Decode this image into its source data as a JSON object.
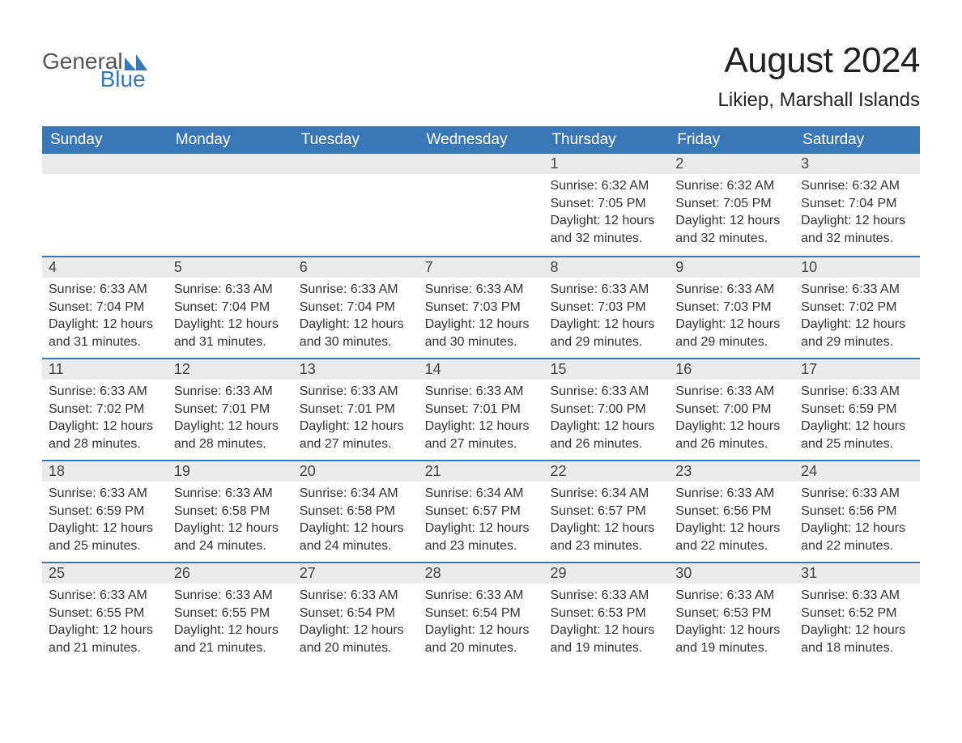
{
  "logo": {
    "general": "General",
    "blue": "Blue",
    "icon_color": "#3a77b7"
  },
  "header": {
    "month_title": "August 2024",
    "location": "Likiep, Marshall Islands"
  },
  "colors": {
    "header_bg": "#3a77b7",
    "header_text": "#ffffff",
    "daynum_bg": "#ebebeb",
    "week_border": "#3a77b7",
    "body_text": "#333333",
    "background": "#ffffff"
  },
  "day_names": [
    "Sunday",
    "Monday",
    "Tuesday",
    "Wednesday",
    "Thursday",
    "Friday",
    "Saturday"
  ],
  "weeks": [
    [
      null,
      null,
      null,
      null,
      {
        "day": "1",
        "sunrise": "Sunrise: 6:32 AM",
        "sunset": "Sunset: 7:05 PM",
        "daylight": "Daylight: 12 hours and 32 minutes."
      },
      {
        "day": "2",
        "sunrise": "Sunrise: 6:32 AM",
        "sunset": "Sunset: 7:05 PM",
        "daylight": "Daylight: 12 hours and 32 minutes."
      },
      {
        "day": "3",
        "sunrise": "Sunrise: 6:32 AM",
        "sunset": "Sunset: 7:04 PM",
        "daylight": "Daylight: 12 hours and 32 minutes."
      }
    ],
    [
      {
        "day": "4",
        "sunrise": "Sunrise: 6:33 AM",
        "sunset": "Sunset: 7:04 PM",
        "daylight": "Daylight: 12 hours and 31 minutes."
      },
      {
        "day": "5",
        "sunrise": "Sunrise: 6:33 AM",
        "sunset": "Sunset: 7:04 PM",
        "daylight": "Daylight: 12 hours and 31 minutes."
      },
      {
        "day": "6",
        "sunrise": "Sunrise: 6:33 AM",
        "sunset": "Sunset: 7:04 PM",
        "daylight": "Daylight: 12 hours and 30 minutes."
      },
      {
        "day": "7",
        "sunrise": "Sunrise: 6:33 AM",
        "sunset": "Sunset: 7:03 PM",
        "daylight": "Daylight: 12 hours and 30 minutes."
      },
      {
        "day": "8",
        "sunrise": "Sunrise: 6:33 AM",
        "sunset": "Sunset: 7:03 PM",
        "daylight": "Daylight: 12 hours and 29 minutes."
      },
      {
        "day": "9",
        "sunrise": "Sunrise: 6:33 AM",
        "sunset": "Sunset: 7:03 PM",
        "daylight": "Daylight: 12 hours and 29 minutes."
      },
      {
        "day": "10",
        "sunrise": "Sunrise: 6:33 AM",
        "sunset": "Sunset: 7:02 PM",
        "daylight": "Daylight: 12 hours and 29 minutes."
      }
    ],
    [
      {
        "day": "11",
        "sunrise": "Sunrise: 6:33 AM",
        "sunset": "Sunset: 7:02 PM",
        "daylight": "Daylight: 12 hours and 28 minutes."
      },
      {
        "day": "12",
        "sunrise": "Sunrise: 6:33 AM",
        "sunset": "Sunset: 7:01 PM",
        "daylight": "Daylight: 12 hours and 28 minutes."
      },
      {
        "day": "13",
        "sunrise": "Sunrise: 6:33 AM",
        "sunset": "Sunset: 7:01 PM",
        "daylight": "Daylight: 12 hours and 27 minutes."
      },
      {
        "day": "14",
        "sunrise": "Sunrise: 6:33 AM",
        "sunset": "Sunset: 7:01 PM",
        "daylight": "Daylight: 12 hours and 27 minutes."
      },
      {
        "day": "15",
        "sunrise": "Sunrise: 6:33 AM",
        "sunset": "Sunset: 7:00 PM",
        "daylight": "Daylight: 12 hours and 26 minutes."
      },
      {
        "day": "16",
        "sunrise": "Sunrise: 6:33 AM",
        "sunset": "Sunset: 7:00 PM",
        "daylight": "Daylight: 12 hours and 26 minutes."
      },
      {
        "day": "17",
        "sunrise": "Sunrise: 6:33 AM",
        "sunset": "Sunset: 6:59 PM",
        "daylight": "Daylight: 12 hours and 25 minutes."
      }
    ],
    [
      {
        "day": "18",
        "sunrise": "Sunrise: 6:33 AM",
        "sunset": "Sunset: 6:59 PM",
        "daylight": "Daylight: 12 hours and 25 minutes."
      },
      {
        "day": "19",
        "sunrise": "Sunrise: 6:33 AM",
        "sunset": "Sunset: 6:58 PM",
        "daylight": "Daylight: 12 hours and 24 minutes."
      },
      {
        "day": "20",
        "sunrise": "Sunrise: 6:34 AM",
        "sunset": "Sunset: 6:58 PM",
        "daylight": "Daylight: 12 hours and 24 minutes."
      },
      {
        "day": "21",
        "sunrise": "Sunrise: 6:34 AM",
        "sunset": "Sunset: 6:57 PM",
        "daylight": "Daylight: 12 hours and 23 minutes."
      },
      {
        "day": "22",
        "sunrise": "Sunrise: 6:34 AM",
        "sunset": "Sunset: 6:57 PM",
        "daylight": "Daylight: 12 hours and 23 minutes."
      },
      {
        "day": "23",
        "sunrise": "Sunrise: 6:33 AM",
        "sunset": "Sunset: 6:56 PM",
        "daylight": "Daylight: 12 hours and 22 minutes."
      },
      {
        "day": "24",
        "sunrise": "Sunrise: 6:33 AM",
        "sunset": "Sunset: 6:56 PM",
        "daylight": "Daylight: 12 hours and 22 minutes."
      }
    ],
    [
      {
        "day": "25",
        "sunrise": "Sunrise: 6:33 AM",
        "sunset": "Sunset: 6:55 PM",
        "daylight": "Daylight: 12 hours and 21 minutes."
      },
      {
        "day": "26",
        "sunrise": "Sunrise: 6:33 AM",
        "sunset": "Sunset: 6:55 PM",
        "daylight": "Daylight: 12 hours and 21 minutes."
      },
      {
        "day": "27",
        "sunrise": "Sunrise: 6:33 AM",
        "sunset": "Sunset: 6:54 PM",
        "daylight": "Daylight: 12 hours and 20 minutes."
      },
      {
        "day": "28",
        "sunrise": "Sunrise: 6:33 AM",
        "sunset": "Sunset: 6:54 PM",
        "daylight": "Daylight: 12 hours and 20 minutes."
      },
      {
        "day": "29",
        "sunrise": "Sunrise: 6:33 AM",
        "sunset": "Sunset: 6:53 PM",
        "daylight": "Daylight: 12 hours and 19 minutes."
      },
      {
        "day": "30",
        "sunrise": "Sunrise: 6:33 AM",
        "sunset": "Sunset: 6:53 PM",
        "daylight": "Daylight: 12 hours and 19 minutes."
      },
      {
        "day": "31",
        "sunrise": "Sunrise: 6:33 AM",
        "sunset": "Sunset: 6:52 PM",
        "daylight": "Daylight: 12 hours and 18 minutes."
      }
    ]
  ]
}
